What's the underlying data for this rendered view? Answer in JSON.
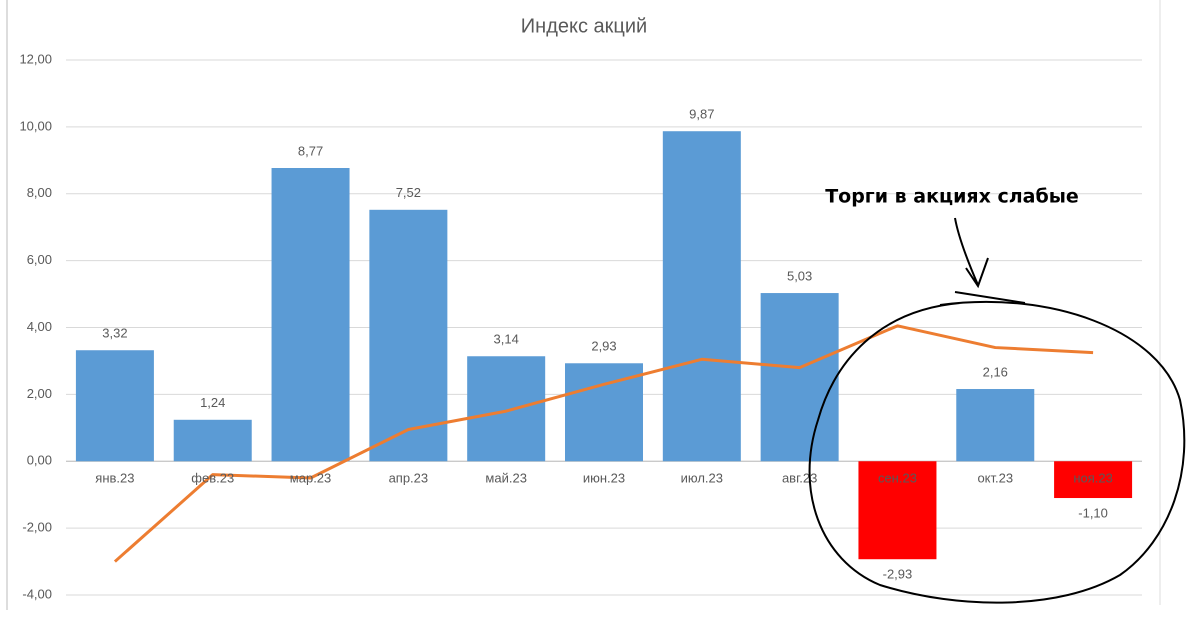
{
  "chart_data": {
    "type": "bar",
    "title": "Индекс акций",
    "categories": [
      "янв.23",
      "фев.23",
      "мар.23",
      "апр.23",
      "май.23",
      "июн.23",
      "июл.23",
      "авг.23",
      "сен.23",
      "окт.23",
      "ноя.23"
    ],
    "series": [
      {
        "type": "bar",
        "color": "#5b9bd5",
        "negative_color": "#ff0000",
        "values": [
          3.32,
          1.24,
          8.77,
          7.52,
          3.14,
          2.93,
          9.87,
          5.03,
          -2.93,
          2.16,
          -1.1
        ],
        "value_labels": [
          "3,32",
          "1,24",
          "8,77",
          "7,52",
          "3,14",
          "2,93",
          "9,87",
          "5,03",
          "-2,93",
          "2,16",
          "-1,10"
        ]
      },
      {
        "type": "line",
        "color": "#ed7d31",
        "values": [
          -3.0,
          -0.4,
          -0.5,
          0.95,
          1.5,
          2.3,
          3.05,
          2.8,
          4.05,
          3.4,
          3.25
        ]
      }
    ],
    "ylim": [
      -4,
      12
    ],
    "yticks": [
      {
        "value": -4,
        "label": "-4,00"
      },
      {
        "value": -2,
        "label": "-2,00"
      },
      {
        "value": 0,
        "label": "0,00"
      },
      {
        "value": 2,
        "label": "2,00"
      },
      {
        "value": 4,
        "label": "4,00"
      },
      {
        "value": 6,
        "label": "6,00"
      },
      {
        "value": 8,
        "label": "8,00"
      },
      {
        "value": 10,
        "label": "10,00"
      },
      {
        "value": 12,
        "label": "12,00"
      }
    ],
    "grid": true,
    "annotation": "Торги в акциях слабые"
  }
}
